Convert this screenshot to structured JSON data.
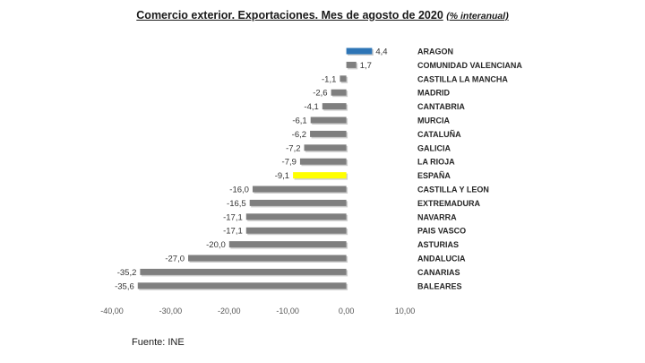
{
  "title": "Comercio exterior. Exportaciones. Mes de agosto de 2020",
  "subtitle": "(% interanual)",
  "source": "Fuente: INE",
  "colors": {
    "default": "#7f7f7f",
    "positive_top": "#2e75b6",
    "highlight": "#ffff00"
  },
  "chart_data": {
    "type": "bar",
    "orientation": "horizontal",
    "title": "Comercio exterior. Exportaciones. Mes de agosto de 2020",
    "subtitle": "(% interanual)",
    "categories": [
      "ARAGON",
      "COMUNIDAD VALENCIANA",
      "CASTILLA LA MANCHA",
      "MADRID",
      "CANTABRIA",
      "MURCIA",
      "CATALUÑA",
      "GALICIA",
      "LA RIOJA",
      "ESPAÑA",
      "CASTILLA Y LEON",
      "EXTREMADURA",
      "NAVARRA",
      "PAIS VASCO",
      "ASTURIAS",
      "ANDALUCIA",
      "CANARIAS",
      "BALEARES"
    ],
    "values": [
      4.4,
      1.7,
      -1.1,
      -2.6,
      -4.1,
      -6.1,
      -6.2,
      -7.2,
      -7.9,
      -9.1,
      -16.0,
      -16.5,
      -17.1,
      -17.1,
      -20.0,
      -27.0,
      -35.2,
      -35.6
    ],
    "value_labels": [
      "4,4",
      "1,7",
      "-1,1",
      "-2,6",
      "-4,1",
      "-6,1",
      "-6,2",
      "-7,2",
      "-7,9",
      "-9,1",
      "-16,0",
      "-16,5",
      "-17,1",
      "-17,1",
      "-20,0",
      "-27,0",
      "-35,2",
      "-35,6"
    ],
    "bar_colors": [
      "#2e75b6",
      "#7f7f7f",
      "#7f7f7f",
      "#7f7f7f",
      "#7f7f7f",
      "#7f7f7f",
      "#7f7f7f",
      "#7f7f7f",
      "#7f7f7f",
      "#ffff00",
      "#7f7f7f",
      "#7f7f7f",
      "#7f7f7f",
      "#7f7f7f",
      "#7f7f7f",
      "#7f7f7f",
      "#7f7f7f",
      "#7f7f7f"
    ],
    "xlim": [
      -40,
      10
    ],
    "xticks": [
      -40,
      -30,
      -20,
      -10,
      0,
      10
    ],
    "xtick_labels": [
      "-40,00",
      "-30,00",
      "-20,00",
      "-10,00",
      "0,00",
      "10,00"
    ],
    "grid": false,
    "legend": "none",
    "xlabel": "",
    "ylabel": ""
  }
}
